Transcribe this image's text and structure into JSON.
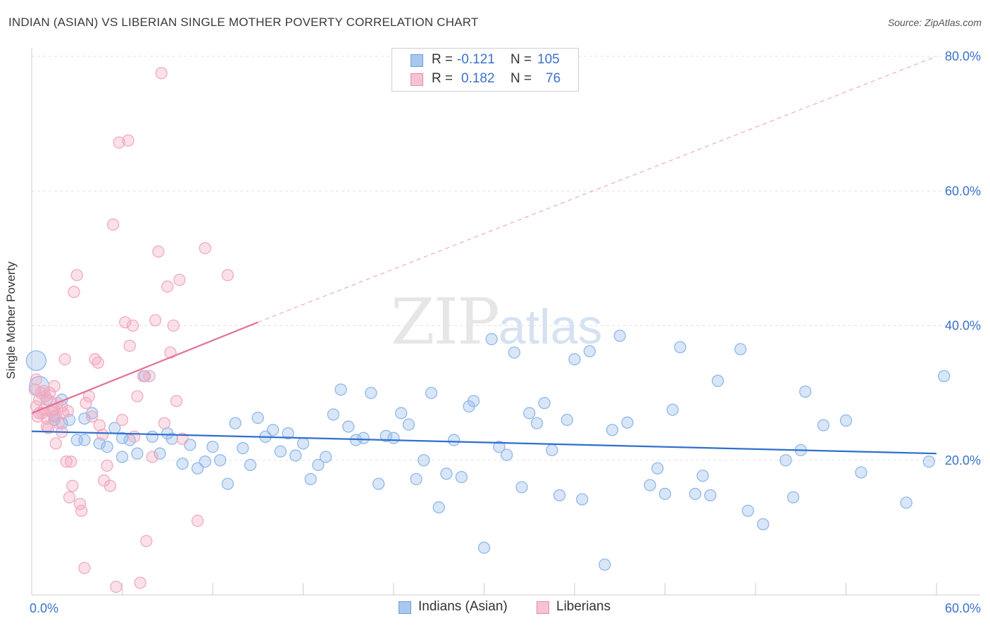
{
  "header": {
    "title": "INDIAN (ASIAN) VS LIBERIAN SINGLE MOTHER POVERTY CORRELATION CHART",
    "source": "Source: ZipAtlas.com"
  },
  "watermark": {
    "zip": "ZIP",
    "atlas": "atlas"
  },
  "legend": {
    "rows": [
      {
        "r_label": "R =",
        "r_value": "-0.121",
        "n_label": "N =",
        "n_value": "105",
        "color": "#a9c8f0",
        "border": "#6b9ee0"
      },
      {
        "r_label": "R =",
        "r_value": "0.182",
        "n_label": "N =",
        "n_value": "76",
        "color": "#f7c3d2",
        "border": "#e58aa8"
      }
    ]
  },
  "bottom_legend": [
    {
      "label": "Indians (Asian)",
      "color": "#a9c8f0",
      "border": "#6b9ee0"
    },
    {
      "label": "Liberians",
      "color": "#f7c3d2",
      "border": "#e58aa8"
    }
  ],
  "chart_data": {
    "type": "scatter",
    "ylabel": "Single Mother Poverty",
    "xlim": [
      0,
      60
    ],
    "ylim": [
      0,
      80
    ],
    "x_tick_labels": [
      "0.0%",
      "60.0%"
    ],
    "y_tick_labels": [
      {
        "value": 20,
        "label": "20.0%"
      },
      {
        "value": 40,
        "label": "40.0%"
      },
      {
        "value": 60,
        "label": "60.0%"
      },
      {
        "value": 80,
        "label": "80.0%"
      }
    ],
    "grid": true,
    "series": [
      {
        "name": "Indians (Asian)",
        "color": "#8fb8ea",
        "trend": {
          "x": [
            0,
            60
          ],
          "y": [
            24.3,
            21.0
          ],
          "color": "#2f6fcc"
        },
        "points": [
          [
            0.3,
            34.8
          ],
          [
            0.5,
            31.0
          ],
          [
            1.0,
            29.0
          ],
          [
            1.5,
            26.5
          ],
          [
            2.0,
            25.5
          ],
          [
            2.5,
            26.0
          ],
          [
            3.0,
            23.0
          ],
          [
            3.5,
            23.0
          ],
          [
            4.0,
            27.0
          ],
          [
            4.5,
            22.5
          ],
          [
            5.0,
            22.0
          ],
          [
            5.5,
            24.8
          ],
          [
            6.0,
            20.5
          ],
          [
            6.5,
            23.0
          ],
          [
            7.0,
            21.0
          ],
          [
            7.5,
            32.5
          ],
          [
            8.0,
            23.5
          ],
          [
            8.5,
            21.0
          ],
          [
            9.0,
            24.0
          ],
          [
            9.3,
            23.2
          ],
          [
            10.0,
            19.5
          ],
          [
            10.5,
            22.3
          ],
          [
            11.0,
            18.8
          ],
          [
            11.5,
            19.8
          ],
          [
            12.0,
            22.0
          ],
          [
            12.5,
            20.0
          ],
          [
            13.0,
            16.5
          ],
          [
            13.5,
            25.5
          ],
          [
            14.0,
            21.8
          ],
          [
            14.5,
            19.3
          ],
          [
            15.0,
            26.3
          ],
          [
            15.5,
            23.5
          ],
          [
            16.0,
            24.5
          ],
          [
            16.5,
            21.3
          ],
          [
            17.0,
            24.0
          ],
          [
            17.5,
            20.7
          ],
          [
            18.0,
            22.5
          ],
          [
            18.5,
            17.2
          ],
          [
            19.0,
            19.3
          ],
          [
            19.5,
            20.5
          ],
          [
            20.0,
            26.8
          ],
          [
            20.5,
            30.5
          ],
          [
            21.0,
            25.0
          ],
          [
            21.5,
            23.0
          ],
          [
            22.0,
            23.3
          ],
          [
            22.5,
            30.0
          ],
          [
            23.0,
            16.5
          ],
          [
            23.5,
            23.6
          ],
          [
            24.0,
            23.3
          ],
          [
            24.5,
            27.0
          ],
          [
            25.0,
            25.3
          ],
          [
            25.5,
            17.2
          ],
          [
            26.0,
            20.0
          ],
          [
            26.5,
            30.0
          ],
          [
            27.0,
            13.0
          ],
          [
            27.5,
            18.0
          ],
          [
            28.0,
            23.0
          ],
          [
            28.5,
            17.5
          ],
          [
            29.0,
            28.0
          ],
          [
            29.3,
            28.8
          ],
          [
            30.5,
            38.0
          ],
          [
            30.0,
            7.0
          ],
          [
            31.0,
            22.0
          ],
          [
            31.5,
            20.8
          ],
          [
            32.0,
            36.0
          ],
          [
            32.5,
            16.0
          ],
          [
            33.0,
            27.0
          ],
          [
            33.5,
            25.5
          ],
          [
            34.0,
            28.5
          ],
          [
            34.5,
            21.5
          ],
          [
            35.0,
            14.8
          ],
          [
            35.5,
            26.0
          ],
          [
            36.0,
            35.0
          ],
          [
            36.5,
            14.2
          ],
          [
            37.0,
            36.2
          ],
          [
            38.0,
            4.5
          ],
          [
            38.5,
            24.5
          ],
          [
            39.0,
            38.5
          ],
          [
            39.5,
            25.6
          ],
          [
            41.0,
            16.3
          ],
          [
            41.5,
            18.8
          ],
          [
            42.0,
            15.0
          ],
          [
            42.5,
            27.5
          ],
          [
            43.0,
            36.8
          ],
          [
            44.0,
            15.0
          ],
          [
            44.5,
            17.7
          ],
          [
            45.0,
            14.8
          ],
          [
            45.5,
            31.8
          ],
          [
            47.0,
            36.5
          ],
          [
            47.5,
            12.5
          ],
          [
            48.5,
            10.5
          ],
          [
            50.0,
            20.0
          ],
          [
            50.5,
            14.5
          ],
          [
            51.0,
            21.5
          ],
          [
            51.3,
            30.2
          ],
          [
            52.5,
            25.2
          ],
          [
            54.0,
            25.9
          ],
          [
            55.0,
            18.2
          ],
          [
            58.0,
            13.7
          ],
          [
            59.5,
            19.8
          ],
          [
            60.5,
            32.5
          ],
          [
            2.0,
            29.0
          ],
          [
            1.5,
            26.0
          ],
          [
            3.5,
            26.2
          ],
          [
            6.0,
            23.3
          ]
        ]
      },
      {
        "name": "Liberians",
        "color": "#f2a9bf",
        "trend": {
          "x": [
            0,
            15
          ],
          "y": [
            27.0,
            40.5
          ],
          "dash_to": [
            60,
            80.0
          ],
          "color": "#e0719a"
        },
        "points": [
          [
            0.2,
            30.5
          ],
          [
            0.3,
            28.0
          ],
          [
            0.4,
            26.5
          ],
          [
            0.5,
            29.0
          ],
          [
            0.6,
            30.0
          ],
          [
            0.7,
            27.0
          ],
          [
            0.8,
            27.5
          ],
          [
            0.9,
            29.5
          ],
          [
            1.0,
            26.2
          ],
          [
            1.1,
            24.8
          ],
          [
            1.2,
            30.0
          ],
          [
            1.3,
            27.2
          ],
          [
            1.4,
            27.5
          ],
          [
            1.5,
            31.0
          ],
          [
            1.6,
            22.5
          ],
          [
            1.7,
            28.5
          ],
          [
            1.8,
            25.5
          ],
          [
            2.0,
            24.2
          ],
          [
            2.1,
            27.0
          ],
          [
            2.2,
            35.0
          ],
          [
            2.3,
            19.8
          ],
          [
            2.5,
            14.5
          ],
          [
            2.6,
            19.8
          ],
          [
            2.7,
            16.2
          ],
          [
            2.8,
            45.0
          ],
          [
            3.0,
            47.5
          ],
          [
            3.2,
            13.5
          ],
          [
            3.3,
            12.5
          ],
          [
            3.5,
            4.0
          ],
          [
            3.6,
            28.5
          ],
          [
            3.8,
            29.5
          ],
          [
            4.0,
            26.5
          ],
          [
            4.2,
            35.0
          ],
          [
            4.4,
            34.5
          ],
          [
            4.5,
            25.2
          ],
          [
            4.7,
            23.8
          ],
          [
            4.8,
            17.0
          ],
          [
            5.0,
            19.2
          ],
          [
            5.2,
            16.2
          ],
          [
            5.4,
            55.0
          ],
          [
            5.6,
            1.2
          ],
          [
            5.8,
            67.2
          ],
          [
            6.0,
            26.0
          ],
          [
            6.2,
            40.5
          ],
          [
            6.4,
            67.5
          ],
          [
            6.5,
            37.0
          ],
          [
            6.7,
            40.0
          ],
          [
            6.8,
            23.5
          ],
          [
            7.0,
            29.5
          ],
          [
            7.2,
            1.8
          ],
          [
            7.4,
            32.5
          ],
          [
            7.6,
            8.0
          ],
          [
            7.8,
            32.5
          ],
          [
            8.0,
            20.5
          ],
          [
            8.2,
            40.8
          ],
          [
            8.4,
            51.0
          ],
          [
            8.6,
            77.5
          ],
          [
            8.8,
            25.5
          ],
          [
            9.0,
            45.8
          ],
          [
            9.2,
            36.0
          ],
          [
            9.4,
            40.0
          ],
          [
            9.6,
            28.8
          ],
          [
            9.8,
            46.8
          ],
          [
            10.0,
            23.2
          ],
          [
            11.0,
            11.0
          ],
          [
            11.5,
            51.5
          ],
          [
            13.0,
            47.5
          ],
          [
            0.3,
            32.0
          ],
          [
            0.5,
            27.0
          ],
          [
            1.0,
            25.0
          ],
          [
            1.5,
            27.5
          ],
          [
            2.0,
            28.0
          ],
          [
            1.2,
            28.8
          ],
          [
            0.8,
            30.3
          ],
          [
            1.6,
            26.6
          ],
          [
            2.4,
            27.3
          ]
        ]
      }
    ]
  }
}
